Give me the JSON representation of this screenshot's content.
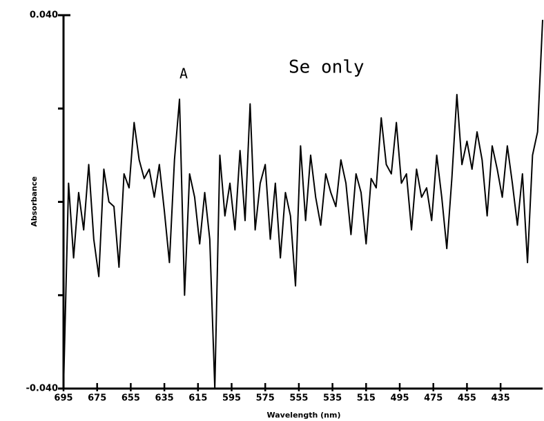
{
  "chart_data": {
    "type": "line",
    "x_label": "Wavelength (nm)",
    "y_label": "Absorbance",
    "annotations": [
      {
        "text": "A"
      },
      {
        "text": "Se only"
      }
    ],
    "color": "#000000",
    "xlim": [
      695,
      410
    ],
    "xticks": [
      695,
      675,
      655,
      635,
      615,
      595,
      575,
      555,
      535,
      515,
      495,
      475,
      455,
      435
    ],
    "ylim": [
      -0.04,
      0.04
    ],
    "yticks": [
      {
        "value": -0.04,
        "label": "-0.040"
      },
      {
        "value": 0.04,
        "label": "0.040"
      }
    ],
    "yminorticks": [
      -0.02,
      0,
      0.02
    ],
    "x": [
      695,
      692,
      689,
      686,
      683,
      680,
      677,
      674,
      671,
      668,
      665,
      662,
      659,
      656,
      653,
      650,
      647,
      644,
      641,
      638,
      635,
      632,
      629,
      626,
      623,
      620,
      617,
      614,
      611,
      608,
      605,
      602,
      599,
      596,
      593,
      590,
      587,
      584,
      581,
      578,
      575,
      572,
      569,
      566,
      563,
      560,
      557,
      554,
      551,
      548,
      545,
      542,
      539,
      536,
      533,
      530,
      527,
      524,
      521,
      518,
      515,
      512,
      509,
      506,
      503,
      500,
      497,
      494,
      491,
      488,
      485,
      482,
      479,
      476,
      473,
      470,
      467,
      464,
      461,
      458,
      455,
      452,
      449,
      446,
      443,
      440,
      437,
      434,
      431,
      428,
      425,
      422,
      419,
      416,
      413,
      410
    ],
    "values": [
      -0.04,
      0.004,
      -0.012,
      0.002,
      -0.006,
      0.008,
      -0.008,
      -0.016,
      0.007,
      0.0,
      -0.001,
      -0.014,
      0.006,
      0.003,
      0.017,
      0.009,
      0.005,
      0.007,
      0.001,
      0.008,
      -0.002,
      -0.013,
      0.009,
      0.022,
      -0.02,
      0.006,
      0.001,
      -0.009,
      0.002,
      -0.008,
      -0.04,
      0.01,
      -0.003,
      0.004,
      -0.006,
      0.011,
      -0.004,
      0.021,
      -0.006,
      0.004,
      0.008,
      -0.008,
      0.004,
      -0.012,
      0.002,
      -0.003,
      -0.018,
      0.012,
      -0.004,
      0.01,
      0.001,
      -0.005,
      0.006,
      0.002,
      -0.001,
      0.009,
      0.004,
      -0.007,
      0.006,
      0.002,
      -0.009,
      0.005,
      0.003,
      0.018,
      0.008,
      0.006,
      0.017,
      0.004,
      0.006,
      -0.006,
      0.007,
      0.001,
      0.003,
      -0.004,
      0.01,
      0.001,
      -0.01,
      0.005,
      0.023,
      0.008,
      0.013,
      0.007,
      0.015,
      0.009,
      -0.003,
      0.012,
      0.007,
      0.001,
      0.012,
      0.004,
      -0.005,
      0.006,
      -0.013,
      0.01,
      0.015,
      0.039
    ]
  }
}
